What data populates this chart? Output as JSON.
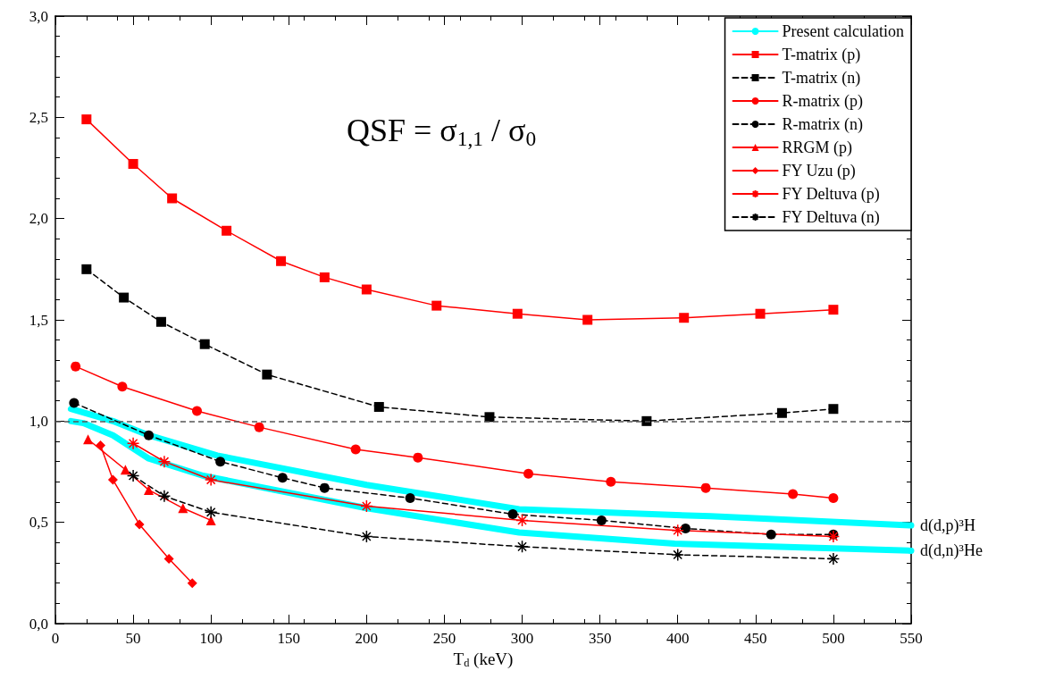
{
  "chart_data": {
    "type": "line",
    "xlabel": "T$_{d}$ (keV)",
    "xlim": [
      0,
      550
    ],
    "xticks": [
      0,
      50,
      100,
      150,
      200,
      250,
      300,
      350,
      400,
      450,
      500,
      550
    ],
    "ylim": [
      0,
      3
    ],
    "yticks": [
      {
        "value": 0,
        "label": "0,0"
      },
      {
        "value": 0.5,
        "label": "0,5"
      },
      {
        "value": 1,
        "label": "1,0"
      },
      {
        "value": 1.5,
        "label": "1,5"
      },
      {
        "value": 2,
        "label": "2,0"
      },
      {
        "value": 2.5,
        "label": "2,5"
      },
      {
        "value": 3,
        "label": "3,0"
      }
    ],
    "grid": false,
    "legend": "top right",
    "ref_lines": [
      {
        "axis": "y",
        "value": 1,
        "color": "#555555",
        "line_style": "dashed"
      }
    ],
    "annotations": [
      "QSF = σ$_{1,1}$ / σ$_{0}$",
      {
        "text": "d(d,p)³H",
        "x": 550,
        "y": 0.485
      },
      {
        "text": "d(d,n)³He",
        "x": 550,
        "y": 0.36
      }
    ],
    "series": [
      {
        "name": "Present calculation",
        "color": "#00ffff",
        "marker": "none",
        "line_style": "solid",
        "x": [
          10,
          37,
          60,
          104,
          200,
          298,
          421,
          550
        ],
        "values": [
          1.06,
          1.0,
          0.93,
          0.83,
          0.685,
          0.565,
          0.53,
          0.485
        ]
      },
      {
        "color": "#00ffff",
        "marker": "none",
        "line_style": "solid",
        "x": [
          10,
          18,
          37,
          60,
          95,
          200,
          298,
          398,
          550
        ],
        "values": [
          1.0,
          0.99,
          0.93,
          0.815,
          0.73,
          0.57,
          0.45,
          0.395,
          0.36
        ]
      },
      {
        "name": "T-matrix (p)",
        "color": "#ff0000",
        "marker": "square",
        "line_style": "solid",
        "x": [
          20,
          50,
          75,
          110,
          145,
          173,
          200,
          245,
          297,
          342,
          404,
          453,
          500
        ],
        "values": [
          2.49,
          2.27,
          2.1,
          1.94,
          1.79,
          1.71,
          1.65,
          1.57,
          1.53,
          1.5,
          1.51,
          1.53,
          1.55
        ]
      },
      {
        "name": "T-matrix (n)",
        "color": "#000000",
        "marker": "square",
        "line_style": "dashed",
        "x": [
          20,
          44,
          68,
          96,
          136,
          208,
          279,
          380,
          467,
          500
        ],
        "values": [
          1.75,
          1.61,
          1.49,
          1.38,
          1.23,
          1.07,
          1.02,
          1.0,
          1.04,
          1.06
        ]
      },
      {
        "name": "R-matrix (p)",
        "color": "#ff0000",
        "marker": "circle",
        "line_style": "solid",
        "x": [
          13,
          43,
          91,
          131,
          193,
          233,
          304,
          357,
          418,
          474,
          500
        ],
        "values": [
          1.27,
          1.17,
          1.05,
          0.97,
          0.86,
          0.82,
          0.74,
          0.7,
          0.67,
          0.64,
          0.62
        ]
      },
      {
        "name": "R-matrix (n)",
        "color": "#000000",
        "marker": "circle",
        "line_style": "dashed",
        "x": [
          12,
          60,
          106,
          146,
          173,
          228,
          294,
          351,
          405,
          460,
          500
        ],
        "values": [
          1.09,
          0.93,
          0.8,
          0.72,
          0.67,
          0.62,
          0.54,
          0.51,
          0.47,
          0.44,
          0.44
        ]
      },
      {
        "name": "RRGM (p)",
        "color": "#ff0000",
        "marker": "triangle",
        "line_style": "solid",
        "x": [
          21,
          45,
          60,
          82,
          100
        ],
        "values": [
          0.91,
          0.76,
          0.66,
          0.57,
          0.51
        ]
      },
      {
        "name": "FY Uzu (p)",
        "color": "#ff0000",
        "marker": "diamond",
        "line_style": "solid",
        "x": [
          29,
          37,
          54,
          73,
          88
        ],
        "values": [
          0.88,
          0.71,
          0.49,
          0.32,
          0.2
        ]
      },
      {
        "name": "FY Deltuva (p)",
        "color": "#ff0000",
        "marker": "cross",
        "line_style": "solid",
        "x": [
          50,
          70,
          100,
          200,
          300,
          400,
          500
        ],
        "values": [
          0.89,
          0.8,
          0.71,
          0.58,
          0.51,
          0.46,
          0.43
        ]
      },
      {
        "name": "FY Deltuva (n)",
        "color": "#000000",
        "marker": "cross",
        "line_style": "dashed",
        "x": [
          50,
          70,
          100,
          200,
          300,
          400,
          500
        ],
        "values": [
          0.73,
          0.63,
          0.55,
          0.43,
          0.38,
          0.34,
          0.32
        ]
      }
    ]
  }
}
